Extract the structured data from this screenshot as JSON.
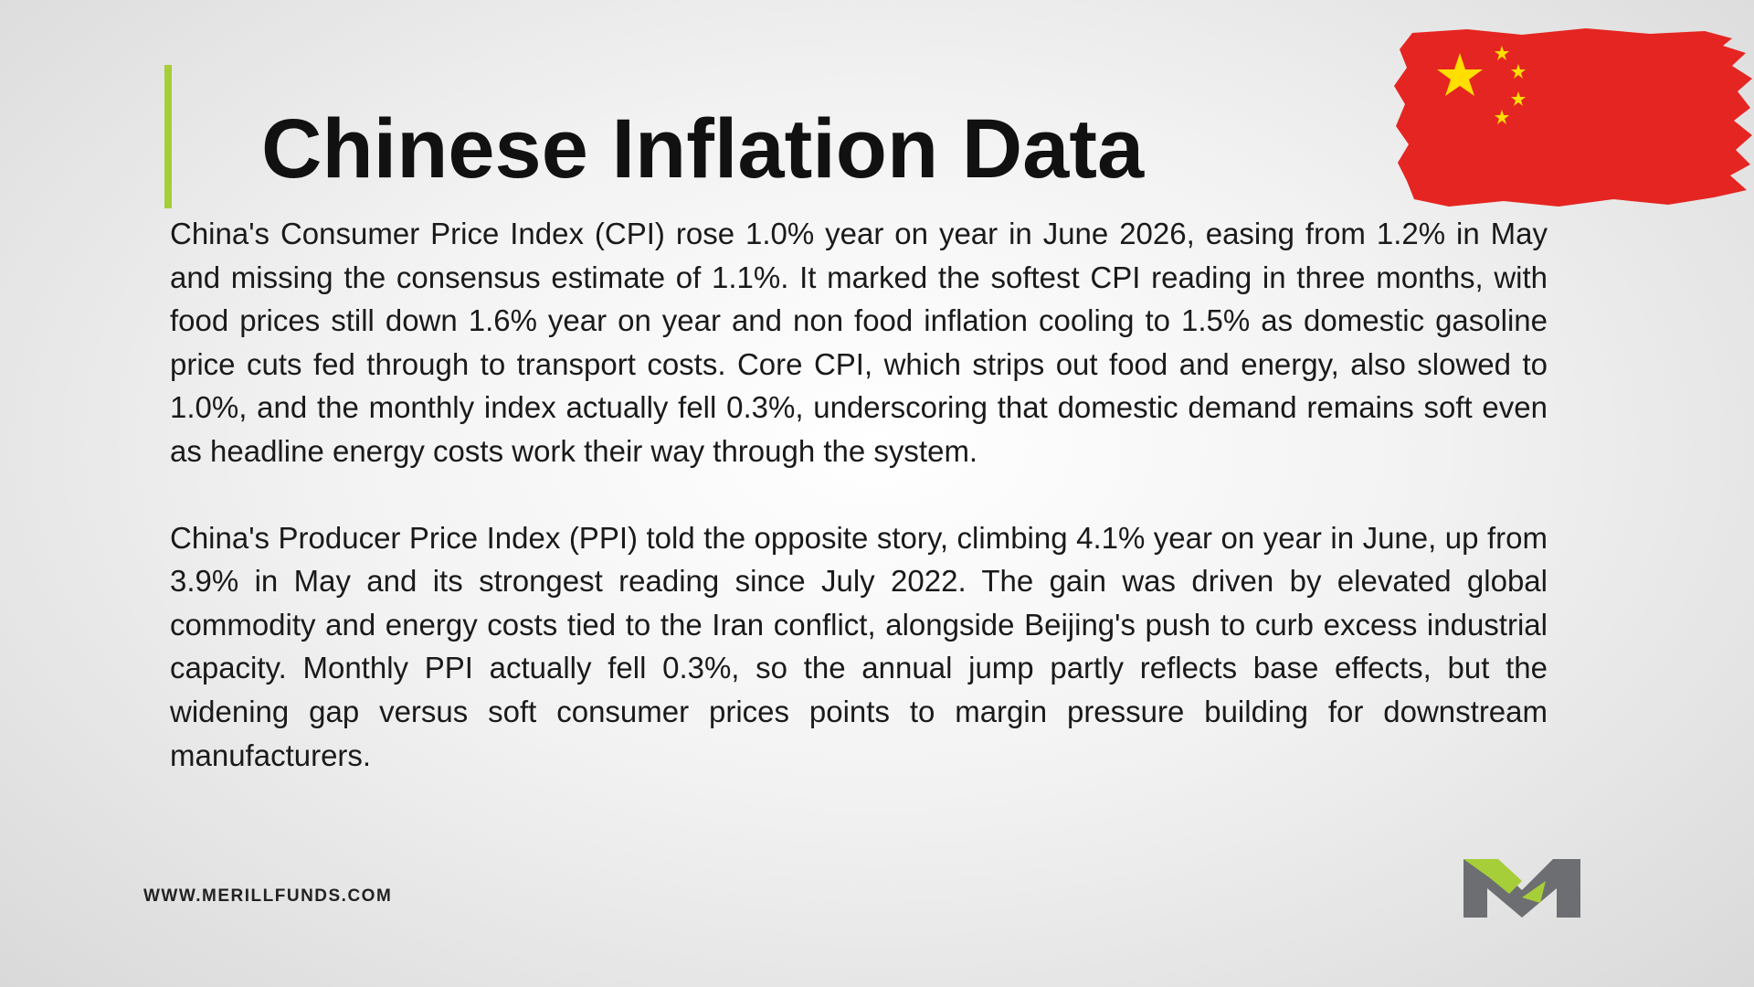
{
  "header": {
    "title": "Chinese Inflation Data"
  },
  "paragraphs": [
    "China's Consumer Price Index (CPI) rose 1.0% year on year in June 2026, easing from 1.2% in May and missing the consensus estimate of 1.1%. It marked the softest CPI reading in three months, with food prices still down 1.6% year on year and non food inflation cooling to 1.5% as domestic gasoline price cuts fed through to transport costs. Core CPI, which strips out food and energy, also slowed to 1.0%, and the monthly index actually fell 0.3%, underscoring that domestic demand remains soft even as headline energy costs work their way through the system.",
    "China's Producer Price Index (PPI) told the opposite story, climbing 4.1% year on year in June, up from 3.9% in May and its strongest reading since July 2022. The gain was driven by elevated global commodity and energy costs tied to the Iran conflict, alongside Beijing's push to curb excess industrial capacity. Monthly PPI actually fell 0.3%, so the annual jump partly reflects base effects, but the widening gap versus soft consumer prices points to margin pressure building for downstream manufacturers."
  ],
  "footer": {
    "url": "WWW.MERILLFUNDS.COM"
  }
}
